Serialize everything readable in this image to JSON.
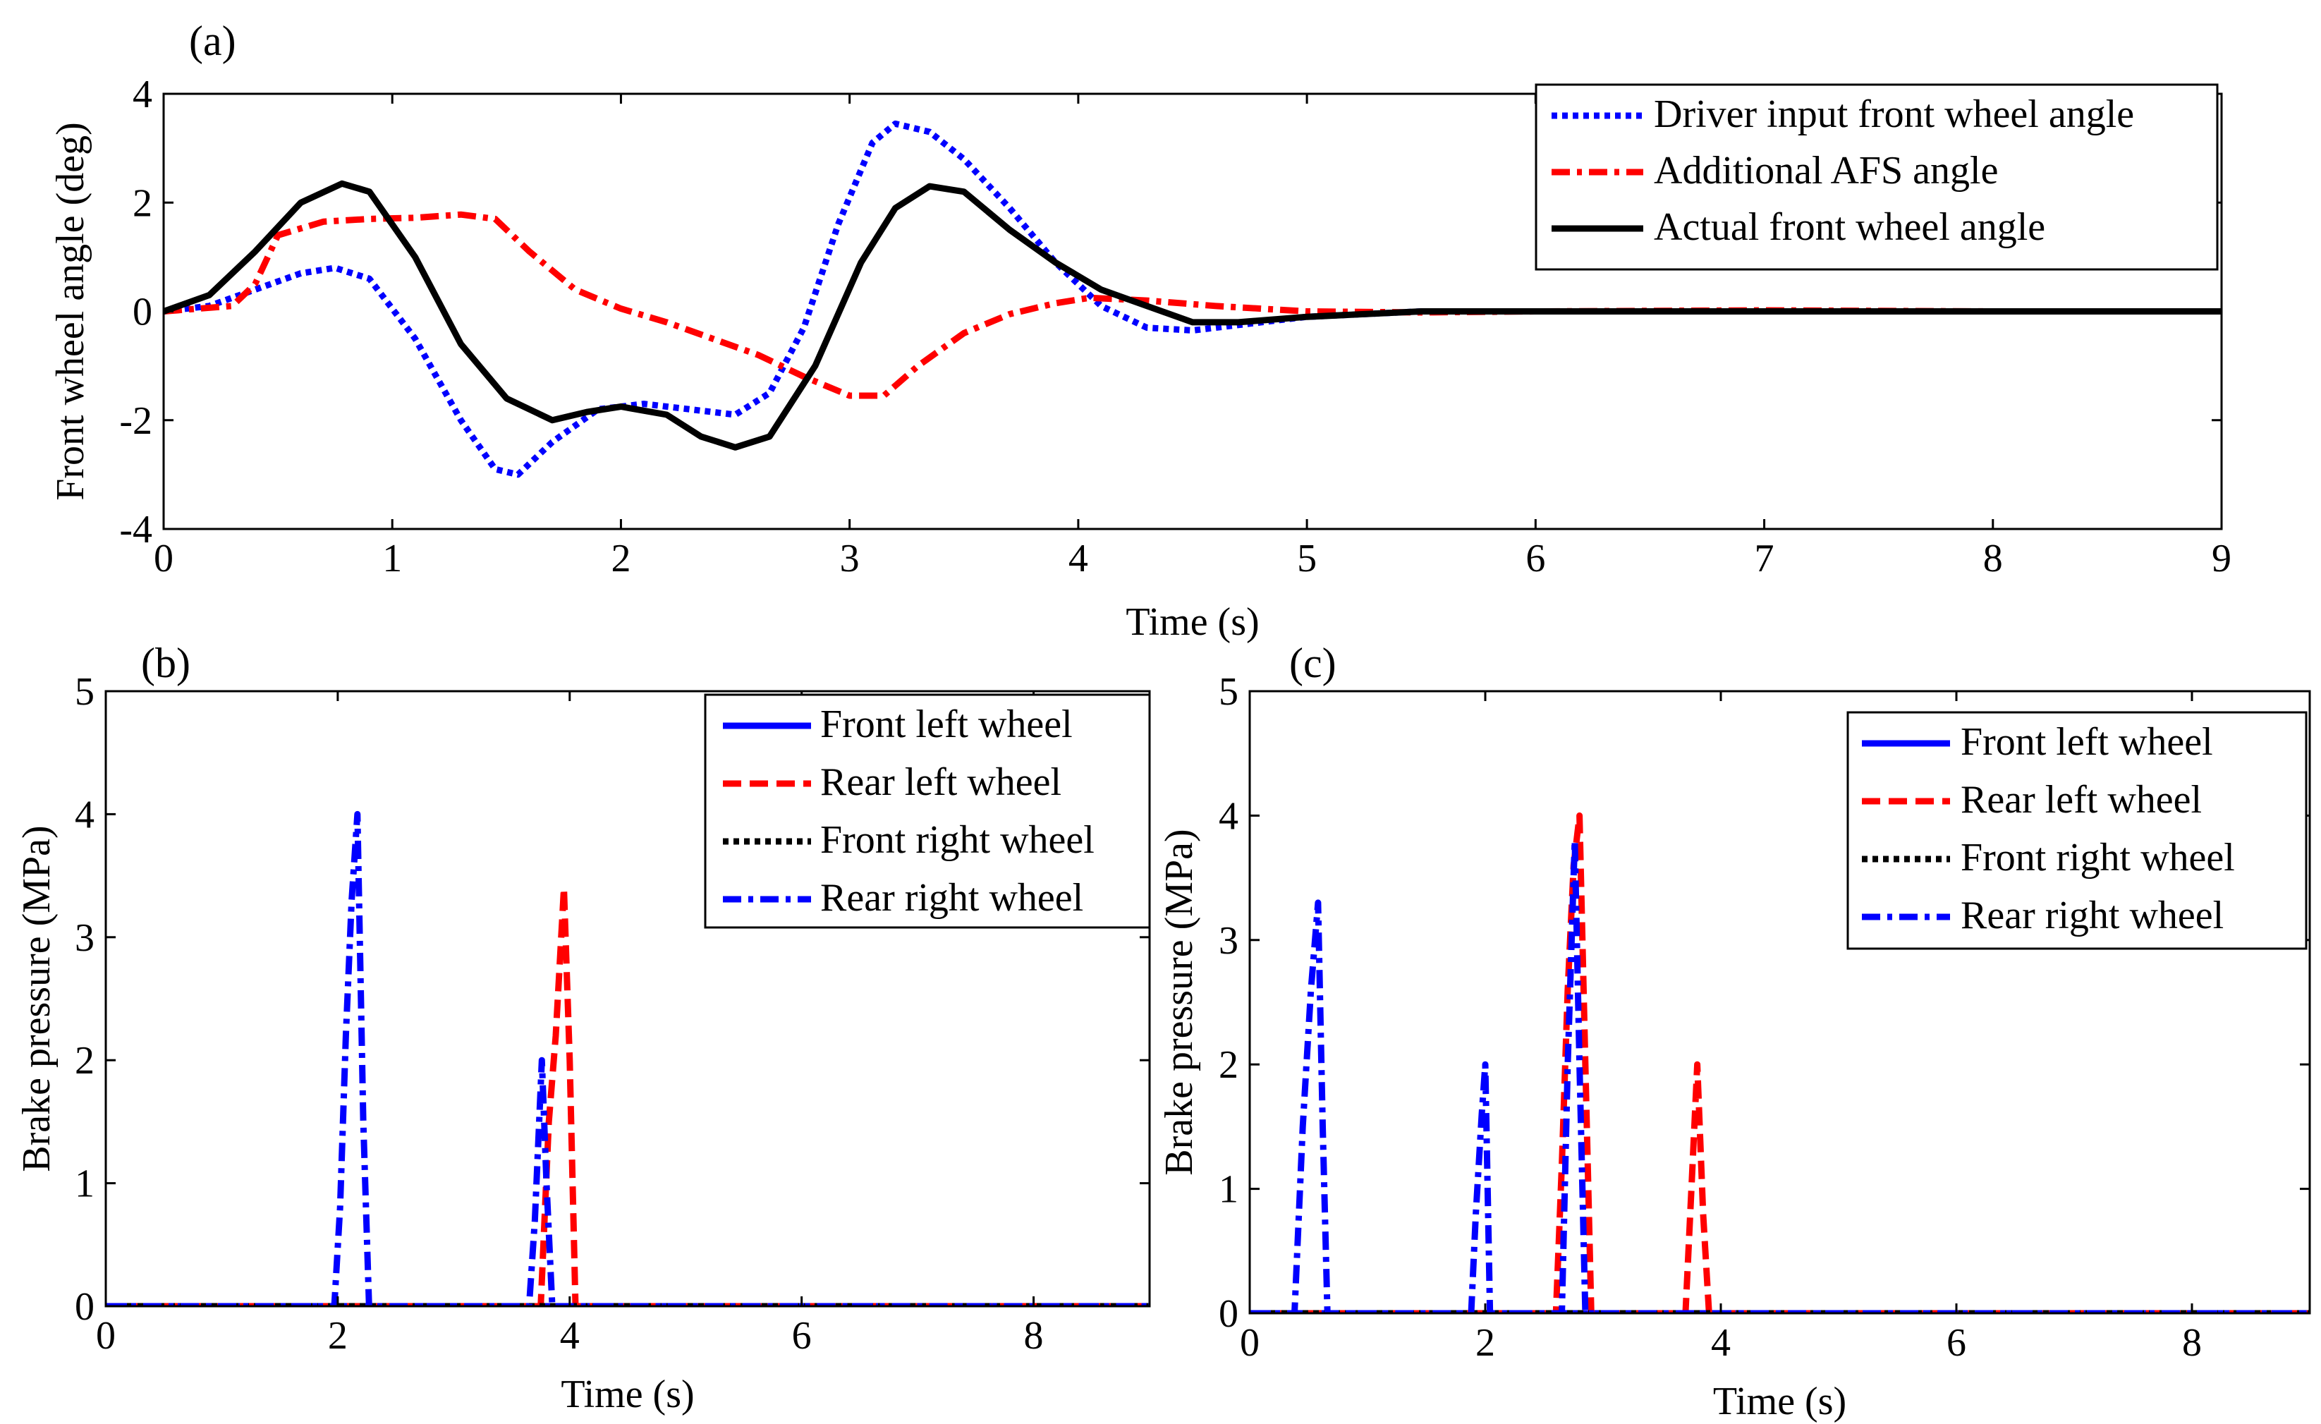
{
  "chart_data": [
    {
      "type": "line",
      "panel_label": "(a)",
      "xlabel": "Time (s)",
      "ylabel": "Front wheel angle (deg)",
      "xlim": [
        0,
        9
      ],
      "ylim": [
        -4,
        4
      ],
      "xticks": [
        0,
        1,
        2,
        3,
        4,
        5,
        6,
        7,
        8,
        9
      ],
      "yticks": [
        -4,
        -2,
        0,
        2,
        4
      ],
      "legend_position": "top-right",
      "series": [
        {
          "name": "Driver input front wheel angle",
          "color": "#0000ff",
          "style": "dotted",
          "x": [
            0,
            0.2,
            0.4,
            0.6,
            0.75,
            0.9,
            1.1,
            1.3,
            1.45,
            1.55,
            1.7,
            1.9,
            2.1,
            2.3,
            2.5,
            2.65,
            2.8,
            2.95,
            3.1,
            3.2,
            3.35,
            3.5,
            3.7,
            3.9,
            4.1,
            4.3,
            4.5,
            4.7,
            5.0,
            5.5,
            6,
            7,
            8,
            9
          ],
          "y": [
            0,
            0.1,
            0.4,
            0.7,
            0.8,
            0.6,
            -0.5,
            -2.0,
            -2.9,
            -3.0,
            -2.4,
            -1.8,
            -1.7,
            -1.8,
            -1.9,
            -1.5,
            -0.3,
            1.6,
            3.1,
            3.45,
            3.3,
            2.8,
            1.9,
            0.9,
            0.1,
            -0.3,
            -0.35,
            -0.25,
            -0.1,
            0,
            0,
            0,
            0,
            0
          ]
        },
        {
          "name": "Additional AFS angle",
          "color": "#ff0000",
          "style": "dashdot",
          "x": [
            0,
            0.3,
            0.4,
            0.5,
            0.7,
            0.9,
            1.1,
            1.3,
            1.45,
            1.6,
            1.8,
            2.0,
            2.2,
            2.4,
            2.6,
            2.8,
            3.0,
            3.15,
            3.3,
            3.5,
            3.7,
            3.9,
            4.05,
            4.3,
            4.6,
            5.0,
            5.5,
            6,
            7,
            8,
            9
          ],
          "y": [
            0,
            0.1,
            0.5,
            1.4,
            1.65,
            1.7,
            1.72,
            1.78,
            1.7,
            1.1,
            0.4,
            0.05,
            -0.2,
            -0.5,
            -0.8,
            -1.2,
            -1.55,
            -1.55,
            -1.0,
            -0.4,
            -0.05,
            0.15,
            0.25,
            0.2,
            0.1,
            0,
            -0.02,
            0,
            0.02,
            0,
            0
          ]
        },
        {
          "name": "Actual front wheel angle",
          "color": "#000000",
          "style": "solid",
          "x": [
            0,
            0.2,
            0.4,
            0.6,
            0.78,
            0.9,
            1.1,
            1.3,
            1.5,
            1.7,
            1.85,
            2.0,
            2.2,
            2.35,
            2.5,
            2.65,
            2.85,
            3.05,
            3.2,
            3.35,
            3.5,
            3.7,
            3.9,
            4.1,
            4.3,
            4.5,
            4.7,
            5.0,
            5.5,
            6,
            7,
            8,
            9
          ],
          "y": [
            0,
            0.3,
            1.1,
            2.0,
            2.35,
            2.2,
            1.0,
            -0.6,
            -1.6,
            -2.0,
            -1.85,
            -1.75,
            -1.9,
            -2.3,
            -2.5,
            -2.3,
            -1.0,
            0.9,
            1.9,
            2.3,
            2.2,
            1.5,
            0.9,
            0.4,
            0.1,
            -0.2,
            -0.2,
            -0.1,
            0,
            0,
            0,
            0,
            0
          ]
        }
      ]
    },
    {
      "type": "line",
      "panel_label": "(b)",
      "xlabel": "Time (s)",
      "ylabel": "Brake pressure (MPa)",
      "xlim": [
        0,
        9
      ],
      "ylim": [
        0,
        5
      ],
      "xticks": [
        0,
        2,
        4,
        6,
        8
      ],
      "yticks": [
        0,
        1,
        2,
        3,
        4,
        5
      ],
      "legend_position": "top-right",
      "series": [
        {
          "name": "Front left wheel",
          "color": "#0000ff",
          "style": "solid",
          "x": [
            0,
            9
          ],
          "y": [
            0,
            0
          ]
        },
        {
          "name": "Rear left wheel",
          "color": "#ff0000",
          "style": "dashed",
          "x": [
            0,
            3.75,
            3.82,
            3.88,
            3.95,
            4.0,
            4.05,
            9
          ],
          "y": [
            0,
            0,
            1.5,
            2.2,
            3.4,
            2.0,
            0,
            0
          ]
        },
        {
          "name": "Front right wheel",
          "color": "#000000",
          "style": "dotted",
          "x": [
            0,
            9
          ],
          "y": [
            0,
            0
          ]
        },
        {
          "name": "Rear right wheel",
          "color": "#0000ff",
          "style": "dashdot",
          "x": [
            0,
            1.97,
            2.02,
            2.07,
            2.12,
            2.17,
            2.22,
            2.27,
            3.65,
            3.7,
            3.76,
            3.8,
            3.85,
            9
          ],
          "y": [
            0,
            0,
            0.8,
            2.2,
            3.3,
            4.0,
            1.5,
            0,
            0,
            0.7,
            2.0,
            1.0,
            0,
            0
          ]
        }
      ]
    },
    {
      "type": "line",
      "panel_label": "(c)",
      "xlabel": "Time (s)",
      "ylabel": "Brake pressure (MPa)",
      "xlim": [
        0,
        9
      ],
      "ylim": [
        0,
        5
      ],
      "xticks": [
        0,
        2,
        4,
        6,
        8
      ],
      "yticks": [
        0,
        1,
        2,
        3,
        4,
        5
      ],
      "legend_position": "top-right",
      "series": [
        {
          "name": "Front left wheel",
          "color": "#0000ff",
          "style": "solid",
          "x": [
            0,
            9
          ],
          "y": [
            0,
            0
          ]
        },
        {
          "name": "Rear left wheel",
          "color": "#ff0000",
          "style": "dashed",
          "x": [
            0,
            2.6,
            2.65,
            2.7,
            2.75,
            2.8,
            2.85,
            2.9,
            3.7,
            3.75,
            3.8,
            3.85,
            3.9,
            9
          ],
          "y": [
            0,
            0,
            1.2,
            2.6,
            3.6,
            4.0,
            2.0,
            0,
            0,
            1.0,
            2.0,
            0.8,
            0,
            0
          ]
        },
        {
          "name": "Front right wheel",
          "color": "#000000",
          "style": "dotted",
          "x": [
            0,
            9
          ],
          "y": [
            0,
            0
          ]
        },
        {
          "name": "Rear right wheel",
          "color": "#0000ff",
          "style": "dashdot",
          "x": [
            0,
            0.38,
            0.45,
            0.52,
            0.58,
            0.62,
            0.66,
            1.88,
            1.92,
            1.97,
            2.0,
            2.04,
            2.65,
            2.7,
            2.76,
            2.8,
            2.85,
            9
          ],
          "y": [
            0,
            0,
            1.5,
            2.6,
            3.3,
            1.5,
            0,
            0,
            0.8,
            1.6,
            2.0,
            0,
            0,
            2.0,
            3.8,
            2.0,
            0,
            0
          ]
        }
      ]
    }
  ]
}
